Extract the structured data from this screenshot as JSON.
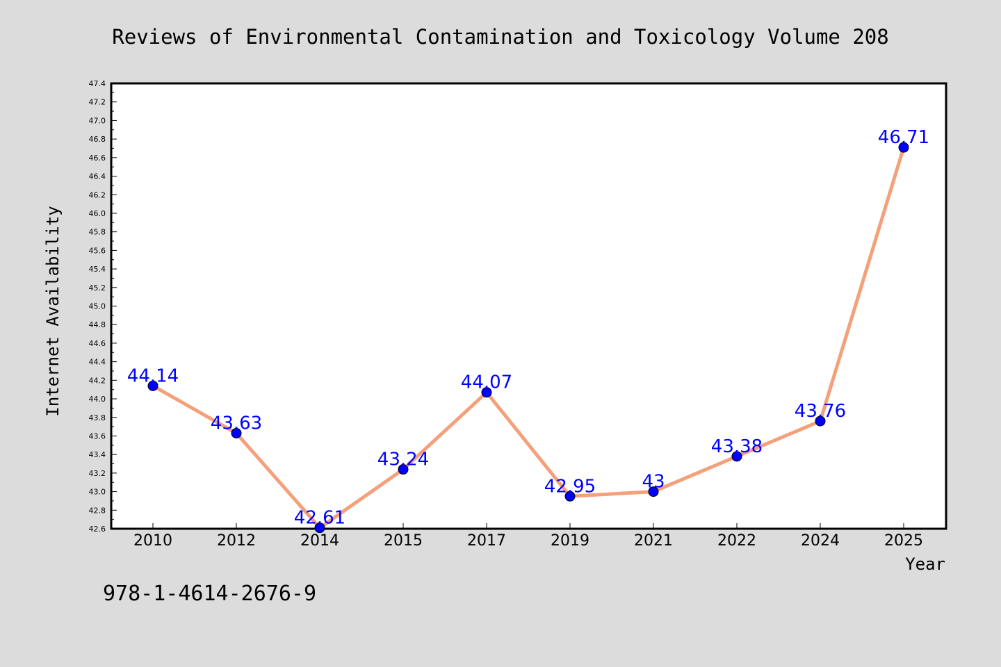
{
  "chart_data": {
    "type": "line",
    "title": "Reviews of Environmental Contamination and Toxicology Volume 208",
    "xlabel": "Year",
    "ylabel": "Internet Availability",
    "categories": [
      "2010",
      "2012",
      "2014",
      "2015",
      "2017",
      "2019",
      "2021",
      "2022",
      "2024",
      "2025"
    ],
    "series": [
      {
        "values": [
          44.14,
          43.63,
          42.61,
          43.24,
          44.07,
          42.95,
          43.0,
          43.38,
          43.76,
          46.71
        ],
        "data_labels": [
          "44.14",
          "43.63",
          "42.61",
          "43.24",
          "44.07",
          "42.95",
          "43",
          "43.38",
          "43.76",
          "46.71"
        ],
        "line_color": "#f4a07a",
        "marker_color": "#0000ff"
      }
    ],
    "ylim": [
      42.6,
      47.4
    ],
    "yticks": [
      "42.6",
      "42.8",
      "43.0",
      "43.2",
      "43.4",
      "43.6",
      "43.8",
      "44.0",
      "44.2",
      "44.4",
      "44.6",
      "44.8",
      "45.0",
      "45.2",
      "45.4",
      "45.6",
      "45.8",
      "46.0",
      "46.2",
      "46.4",
      "46.6",
      "46.8",
      "47.0",
      "47.2",
      "47.4"
    ],
    "grid": false,
    "legend": "none",
    "colors": {
      "background": "#dcdcdc",
      "plot_background": "#ffffff",
      "label_color": "#0000ff"
    }
  },
  "footer": {
    "isbn": "978-1-4614-2676-9"
  }
}
